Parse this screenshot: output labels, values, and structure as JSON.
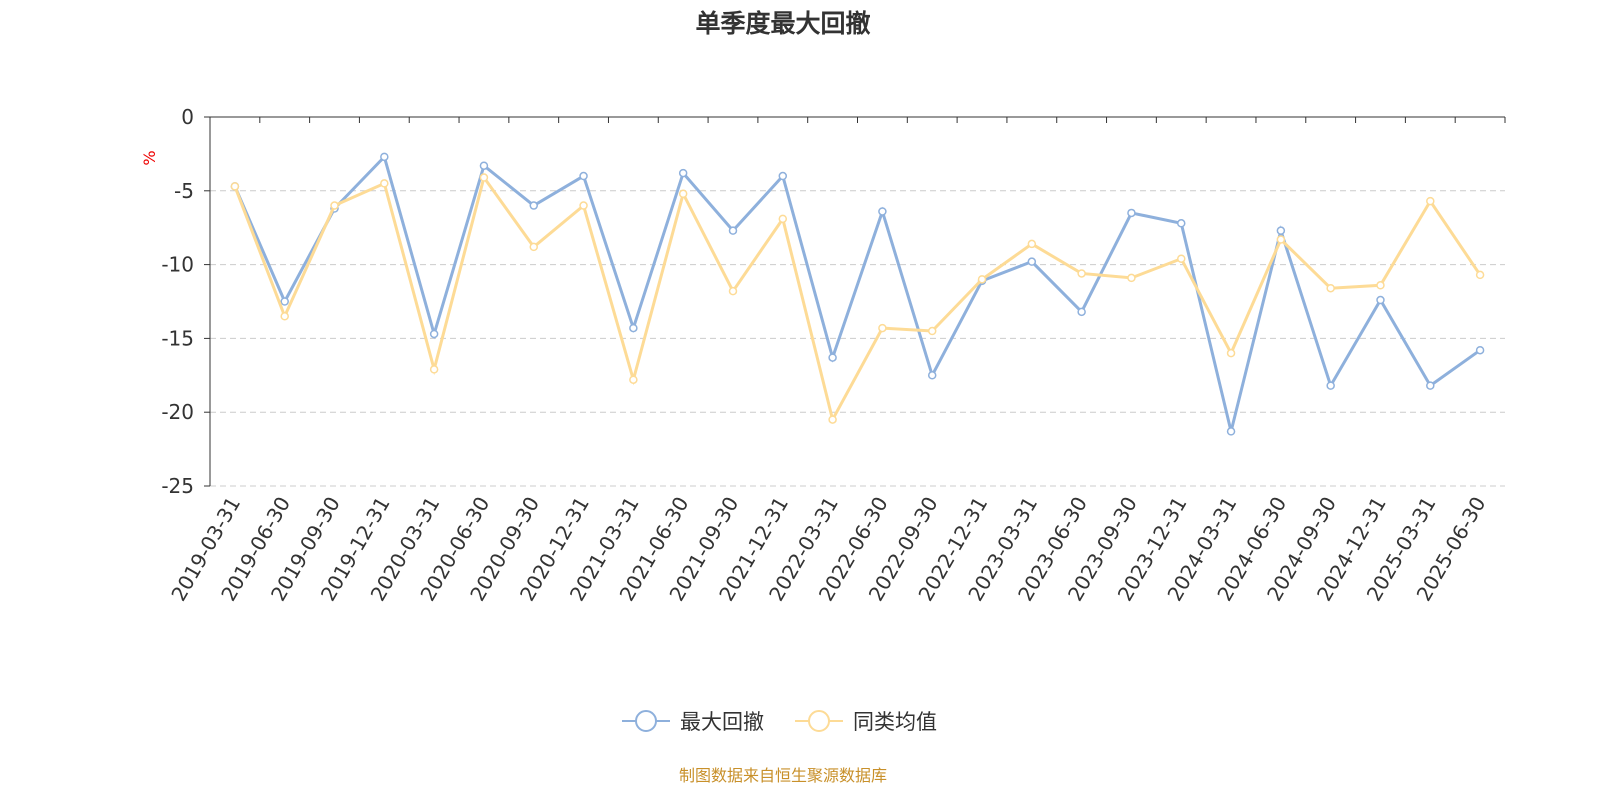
{
  "chart_data": {
    "type": "line",
    "title": "单季度最大回撤",
    "ylabel": "%",
    "ylim": [
      -25,
      0
    ],
    "yticks": [
      0,
      -5,
      -10,
      -15,
      -20,
      -25
    ],
    "grid": true,
    "legend_placement": "bottom",
    "categories": [
      "2019-03-31",
      "2019-06-30",
      "2019-09-30",
      "2019-12-31",
      "2020-03-31",
      "2020-06-30",
      "2020-09-30",
      "2020-12-31",
      "2021-03-31",
      "2021-06-30",
      "2021-09-30",
      "2021-12-31",
      "2022-03-31",
      "2022-06-30",
      "2022-09-30",
      "2022-12-31",
      "2023-03-31",
      "2023-06-30",
      "2023-09-30",
      "2023-12-31",
      "2024-03-31",
      "2024-06-30",
      "2024-09-30",
      "2024-12-31",
      "2025-03-31",
      "2025-06-30"
    ],
    "series": [
      {
        "name": "最大回撤",
        "color": "#8eb0dc",
        "values": [
          -4.7,
          -12.5,
          -6.2,
          -2.7,
          -14.7,
          -3.3,
          -6.0,
          -4.0,
          -14.3,
          -3.8,
          -7.7,
          -4.0,
          -16.3,
          -6.4,
          -17.5,
          -11.1,
          -9.8,
          -13.2,
          -6.5,
          -7.2,
          -21.3,
          -7.7,
          -18.2,
          -12.4,
          -18.2,
          -15.8
        ]
      },
      {
        "name": "同类均值",
        "color": "#fddb96",
        "values": [
          -4.7,
          -13.5,
          -6.0,
          -4.5,
          -17.1,
          -4.1,
          -8.8,
          -6.0,
          -17.8,
          -5.2,
          -11.8,
          -6.9,
          -20.5,
          -14.3,
          -14.5,
          -11.0,
          -8.6,
          -10.6,
          -10.9,
          -9.6,
          -16.0,
          -8.3,
          -11.6,
          -11.4,
          -5.7,
          -10.7
        ]
      }
    ]
  },
  "footer": "制图数据来自恒生聚源数据库"
}
